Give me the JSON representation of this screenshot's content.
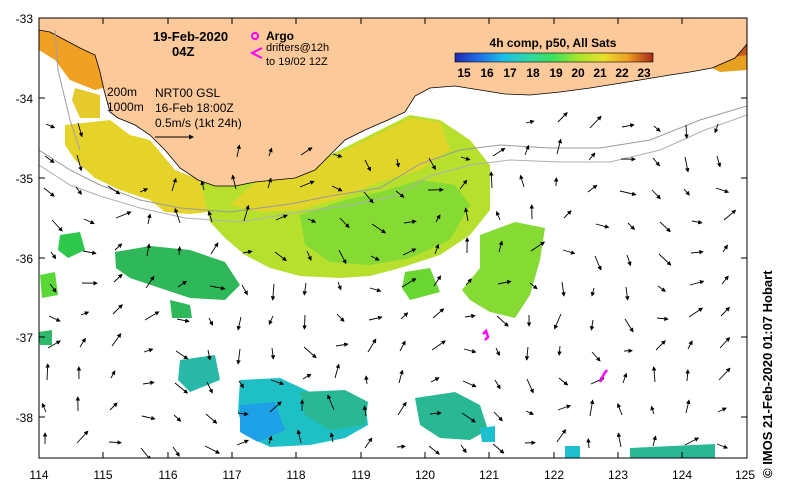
{
  "header": {
    "date": "19-Feb-2020",
    "time": "04Z"
  },
  "legend": {
    "argo_label": "Argo",
    "drifters_label": "drifters@12h",
    "drifters_range": "to 19/02 12Z",
    "composite_label": "4h comp, p50, All Sats",
    "colorbar_ticks": [
      "15",
      "16",
      "17",
      "18",
      "19",
      "20",
      "21",
      "22",
      "23"
    ],
    "colorbar_colors": [
      "#1e2ab0",
      "#1e6ee6",
      "#1ec0e6",
      "#2ed8a8",
      "#3ee05a",
      "#a6e62e",
      "#e6e02a",
      "#f0a023",
      "#e65f1e",
      "#a82818"
    ]
  },
  "info": {
    "isobath_200": "200m",
    "isobath_1000": "1000m",
    "product": "NRT00 GSL",
    "product_date": "16-Feb 18:00Z",
    "velocity_scale": "0.5m/s (1kt 24h)"
  },
  "axes": {
    "x_ticks": [
      "114",
      "115",
      "116",
      "117",
      "118",
      "119",
      "120",
      "121",
      "122",
      "123",
      "124",
      "125"
    ],
    "y_ticks": [
      "-33",
      "-34",
      "-35",
      "-36",
      "-37",
      "-38"
    ]
  },
  "credit": "©  IMOS 21-Feb-2020 01:07 Hobart",
  "colors": {
    "land": "#fcc99a",
    "argo": "#ff00ff",
    "drifter": "#ff00ff"
  }
}
